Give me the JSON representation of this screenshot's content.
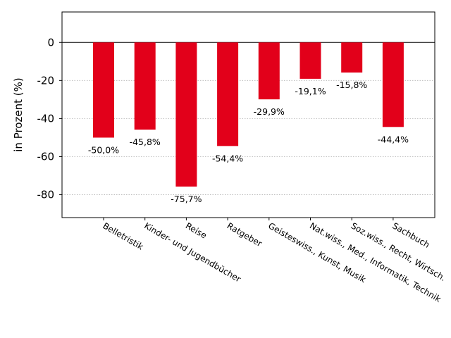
{
  "chart_data": {
    "type": "bar",
    "categories": [
      "Belletristik",
      "Kinder- und Jugendbücher",
      "Reise",
      "Ratgeber",
      "Geisteswiss., Kunst, Musik",
      "Nat.wiss., Med., Informatik, Technik",
      "Soz.wiss., Recht, Wirtsch.",
      "Sachbuch"
    ],
    "values": [
      -50.0,
      -45.8,
      -75.7,
      -54.4,
      -29.9,
      -19.1,
      -15.8,
      -44.4
    ],
    "data_labels": [
      "-50,0%",
      "-45,8%",
      "-75,7%",
      "-54,4%",
      "-29,9%",
      "-19,1%",
      "-15,8%",
      "-44,4%"
    ],
    "title": "",
    "xlabel": "",
    "ylabel": "in Prozent (%)",
    "ylim": [
      -92,
      16
    ],
    "yticks": [
      0,
      -20,
      -40,
      -60,
      -80
    ],
    "ytick_labels": [
      "0",
      "-20",
      "-40",
      "-60",
      "-80"
    ],
    "grid": "horizontal dotted",
    "bar_color": "#e2001a",
    "zero_line_color": "#000000"
  }
}
